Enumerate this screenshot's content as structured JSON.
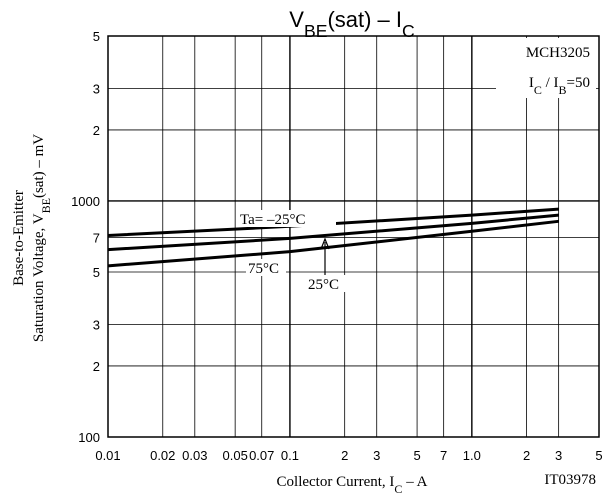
{
  "chart_data": {
    "type": "line",
    "title": [
      "V",
      "BE",
      "(sat)  –  I",
      "C"
    ],
    "x_label": [
      "Collector Current, I",
      "C",
      "  –  A"
    ],
    "y_label": [
      [
        "Base-to-Emitter"
      ],
      [
        "Saturation Voltage, V",
        "BE",
        "(sat)  –  mV"
      ]
    ],
    "annotations": [
      [
        "MCH3205"
      ],
      [
        "I",
        "C",
        " / I",
        "B",
        "=50"
      ],
      [
        "IT03978"
      ]
    ],
    "x": [
      0.01,
      0.1,
      1,
      3
    ],
    "series": [
      {
        "name": "Ta= –25°C",
        "color": "#000000",
        "values": [
          714,
          781,
          871,
          924
        ]
      },
      {
        "name": "25°C",
        "color": "#000000",
        "values": [
          622,
          694,
          804,
          871
        ]
      },
      {
        "name": "75°C",
        "color": "#000000",
        "values": [
          531,
          610,
          744,
          820
        ]
      }
    ],
    "xlim": [
      0.01,
      5
    ],
    "ylim": [
      100,
      5000
    ],
    "log_x": true,
    "log_y": true,
    "grid": true,
    "xticks": [
      0.01,
      0.02,
      0.03,
      0.05,
      0.07,
      0.1,
      {
        "value": 0.2,
        "label": "2"
      },
      {
        "value": 0.3,
        "label": "3"
      },
      {
        "value": 0.5,
        "label": "5"
      },
      {
        "value": 0.7,
        "label": "7"
      },
      {
        "value": 1,
        "label": "1.0"
      },
      {
        "value": 2,
        "label": "2"
      },
      {
        "value": 3,
        "label": "3"
      },
      {
        "value": 5,
        "label": "5"
      }
    ],
    "yticks": [
      100,
      {
        "value": 200,
        "label": "2"
      },
      {
        "value": 300,
        "label": "3"
      },
      {
        "value": 500,
        "label": "5"
      },
      {
        "value": 700,
        "label": "7"
      },
      1000,
      {
        "value": 2000,
        "label": "2"
      },
      {
        "value": 3000,
        "label": "3"
      },
      {
        "value": 5000,
        "label": "5"
      }
    ]
  }
}
